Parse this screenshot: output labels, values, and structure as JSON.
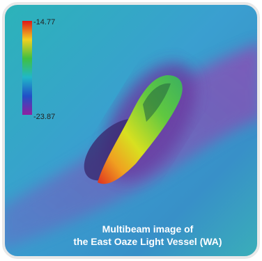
{
  "colorbar": {
    "top_label": "-14.77",
    "bottom_label": "-23.87"
  },
  "caption": {
    "line1": "Multibeam image of",
    "line2": "the East Oaze Light Vessel (WA)"
  }
}
